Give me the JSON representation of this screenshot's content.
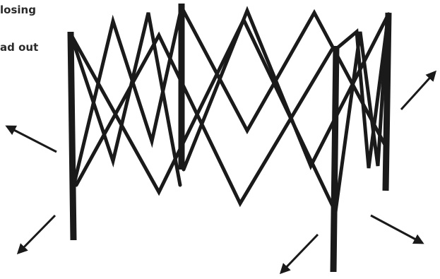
{
  "caption": {
    "line1": "losing",
    "line2": "ad out"
  }
}
